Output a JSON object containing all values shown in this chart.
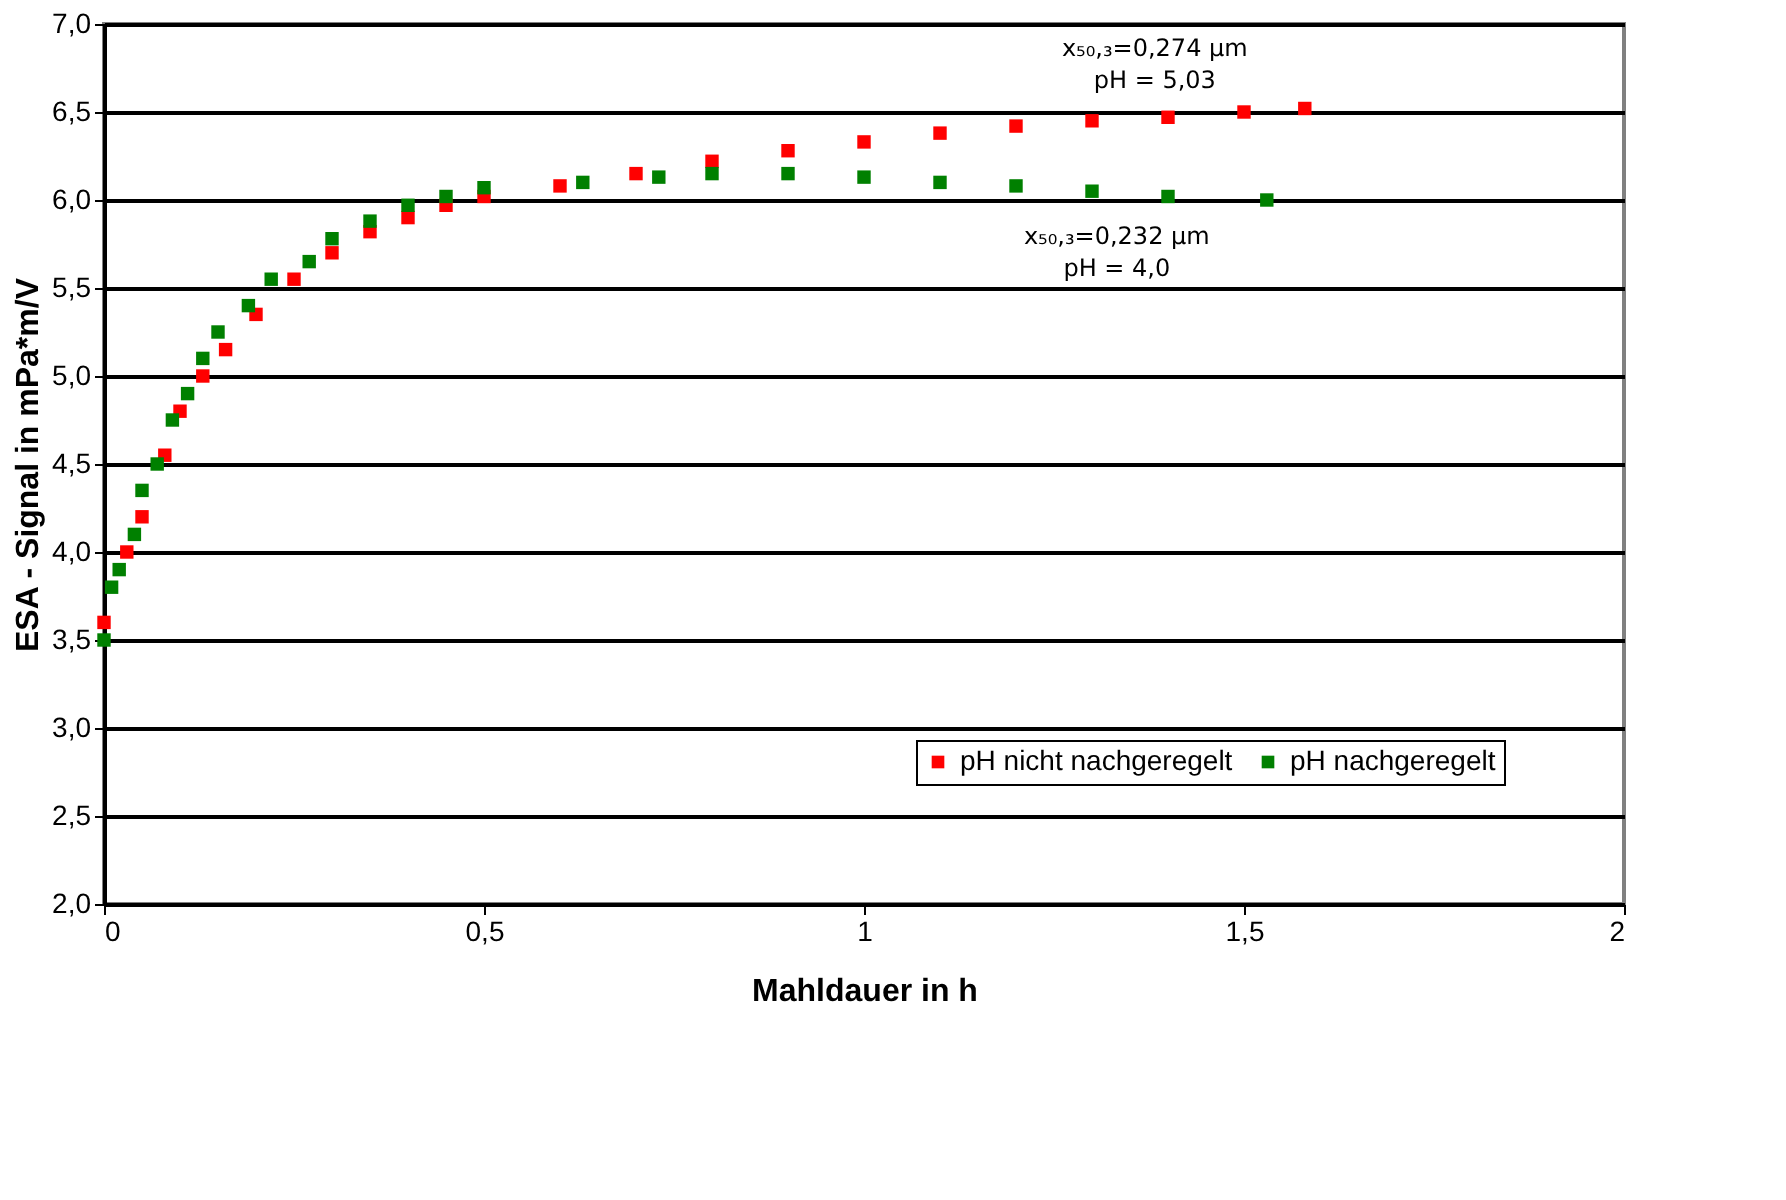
{
  "chart_data": {
    "type": "scatter",
    "xlabel": "Mahldauer in h",
    "ylabel": "ESA - Signal in mPa*m/V",
    "xlim": [
      0,
      2
    ],
    "ylim": [
      2,
      7
    ],
    "xticks": [
      0,
      {
        "value": 0.5,
        "label": "0,5"
      },
      1,
      {
        "value": 1.5,
        "label": "1,5"
      },
      2
    ],
    "yticks": [
      {
        "value": 2,
        "label": "2,0"
      },
      {
        "value": 2.5,
        "label": "2,5"
      },
      {
        "value": 3,
        "label": "3,0"
      },
      {
        "value": 3.5,
        "label": "3,5"
      },
      {
        "value": 4,
        "label": "4,0"
      },
      {
        "value": 4.5,
        "label": "4,5"
      },
      {
        "value": 5,
        "label": "5,0"
      },
      {
        "value": 5.5,
        "label": "5,5"
      },
      {
        "value": 6,
        "label": "6,0"
      },
      {
        "value": 6.5,
        "label": "6,5"
      },
      {
        "value": 7,
        "label": "7,0"
      }
    ],
    "grid": "y",
    "legend": "bottom right",
    "marker": "square",
    "series": [
      {
        "name": "pH nicht nachgeregelt",
        "color": "#ff0000",
        "x": [
          0,
          0.03,
          0.05,
          0.08,
          0.1,
          0.13,
          0.16,
          0.2,
          0.25,
          0.3,
          0.35,
          0.4,
          0.45,
          0.5,
          0.6,
          0.7,
          0.8,
          0.9,
          1.0,
          1.1,
          1.2,
          1.3,
          1.4,
          1.5,
          1.58
        ],
        "values": [
          3.6,
          4.0,
          4.2,
          4.55,
          4.8,
          5.0,
          5.15,
          5.35,
          5.55,
          5.7,
          5.82,
          5.9,
          5.97,
          6.02,
          6.08,
          6.15,
          6.22,
          6.28,
          6.33,
          6.38,
          6.42,
          6.45,
          6.47,
          6.5,
          6.52
        ]
      },
      {
        "name": "pH nachgeregelt",
        "color": "#008000",
        "x": [
          0,
          0.01,
          0.02,
          0.04,
          0.05,
          0.07,
          0.09,
          0.11,
          0.13,
          0.15,
          0.19,
          0.22,
          0.27,
          0.3,
          0.35,
          0.4,
          0.45,
          0.5,
          0.63,
          0.73,
          0.8,
          0.9,
          1.0,
          1.1,
          1.2,
          1.3,
          1.4,
          1.53
        ],
        "values": [
          3.5,
          3.8,
          3.9,
          4.1,
          4.35,
          4.5,
          4.75,
          4.9,
          5.1,
          5.25,
          5.4,
          5.55,
          5.65,
          5.78,
          5.88,
          5.97,
          6.02,
          6.07,
          6.1,
          6.13,
          6.15,
          6.15,
          6.13,
          6.1,
          6.08,
          6.05,
          6.02,
          6.0
        ]
      }
    ],
    "annotations": [
      {
        "text": "x₅₀,₃=0,274 µm\npH = 5,03",
        "x": 1.58,
        "y": 6.52
      },
      {
        "text": "x₅₀,₃=0,232 µm\npH = 4,0",
        "x": 1.53,
        "y": 6.0
      }
    ]
  }
}
